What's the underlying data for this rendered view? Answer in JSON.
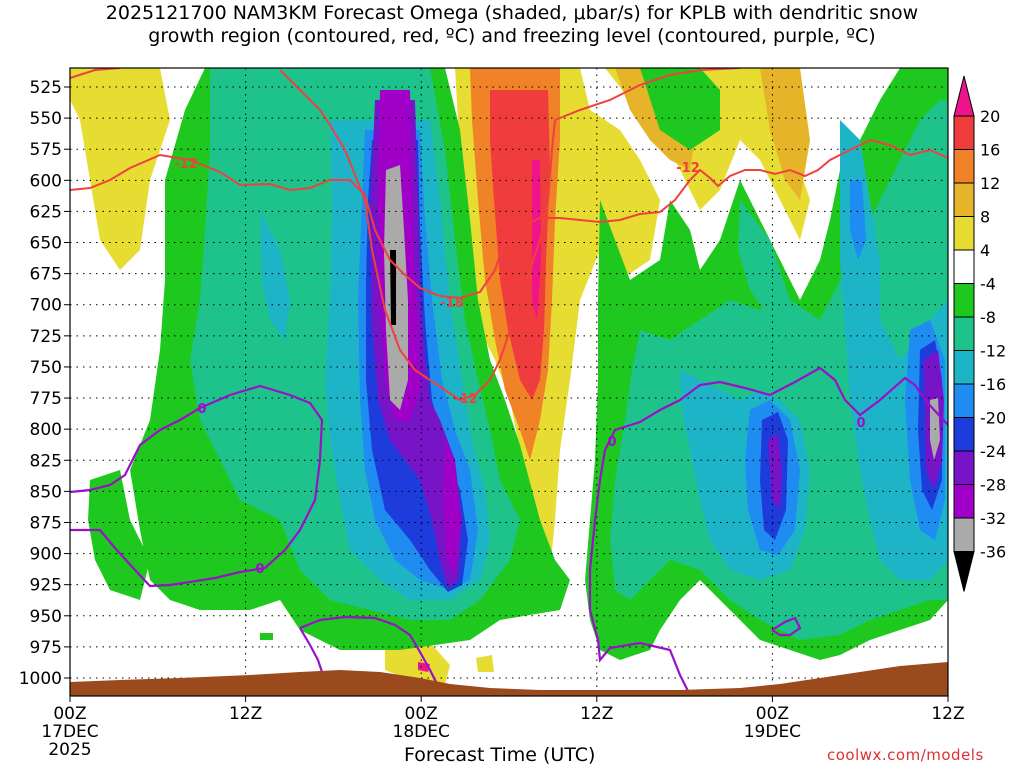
{
  "chart_data": {
    "type": "heatmap",
    "title_line1": "2025121700 NAM3KM Forecast Omega (shaded, μbar/s) for KPLB with dendritic snow",
    "title_line2": "growth region (contoured, red, ºC) and freezing level (contoured, purple, ºC)",
    "xlabel": "Forecast Time (UTC)",
    "credit": "coolwx.com/models",
    "x_ticks": [
      {
        "hour": 0,
        "label": "00Z",
        "sub": "17DEC",
        "sub2": "2025"
      },
      {
        "hour": 12,
        "label": "12Z",
        "sub": "",
        "sub2": ""
      },
      {
        "hour": 24,
        "label": "00Z",
        "sub": "18DEC",
        "sub2": ""
      },
      {
        "hour": 36,
        "label": "12Z",
        "sub": "",
        "sub2": ""
      },
      {
        "hour": 48,
        "label": "00Z",
        "sub": "19DEC",
        "sub2": ""
      },
      {
        "hour": 60,
        "label": "12Z",
        "sub": "",
        "sub2": ""
      }
    ],
    "xlim": [
      0,
      60
    ],
    "y_ticks": [
      525,
      550,
      575,
      600,
      625,
      650,
      675,
      700,
      725,
      750,
      775,
      800,
      825,
      850,
      875,
      900,
      925,
      950,
      975,
      1000
    ],
    "ylim": [
      510,
      1010
    ],
    "colorbar": {
      "labels": [
        "20",
        "16",
        "12",
        "8",
        "4",
        "-4",
        "-8",
        "-12",
        "-16",
        "-20",
        "-24",
        "-28",
        "-32",
        "-36"
      ],
      "colors": [
        "#f0148c",
        "#f03c3c",
        "#f08228",
        "#e6b428",
        "#e6dc32",
        "#ffffff",
        "#1ec81e",
        "#1ec38c",
        "#1eb4c8",
        "#1e8cf0",
        "#1e3cdc",
        "#7814c8",
        "#a000c8",
        "#aaaaaa",
        "#000000"
      ]
    },
    "red_contour_labels": [
      "-12",
      "-18",
      "-12",
      "-12"
    ],
    "purple_contour_labels": [
      "0",
      "0",
      "0",
      "0"
    ]
  }
}
